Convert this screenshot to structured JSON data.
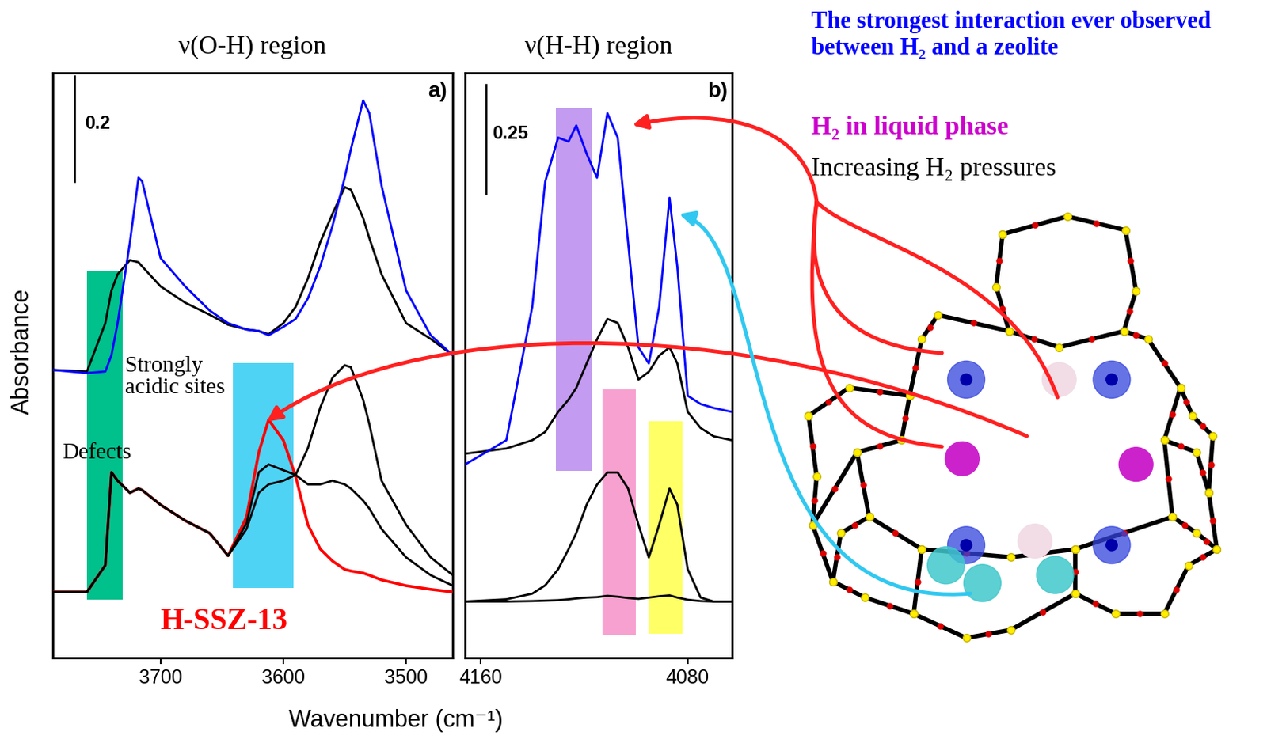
{
  "chart_data": [
    {
      "type": "line",
      "title": "ν(O-H) region",
      "panel_label": "a)",
      "xlim": [
        3788,
        3462
      ],
      "xticks": [
        3700,
        3600,
        3500
      ],
      "ylim": [
        0,
        1.115
      ],
      "tick_labels": "x",
      "x": [
        3788,
        3760,
        3745,
        3740,
        3735,
        3725,
        3718,
        3715,
        3700,
        3680,
        3660,
        3645,
        3630,
        3620,
        3612,
        3600,
        3590,
        3580,
        3570,
        3560,
        3550,
        3545,
        3535,
        3530,
        3520,
        3500,
        3480,
        3462
      ],
      "series": [
        {
          "color": "#ff0000",
          "line_style": "solid",
          "values": [
            0.126,
            0.126,
            0.177,
            0.354,
            0.338,
            0.315,
            0.323,
            0.32,
            0.292,
            0.262,
            0.238,
            0.195,
            0.269,
            0.392,
            0.454,
            0.415,
            0.346,
            0.254,
            0.208,
            0.185,
            0.169,
            0.166,
            0.162,
            0.158,
            0.149,
            0.138,
            0.131,
            0.126
          ]
        },
        {
          "color": "#000000",
          "line_style": "solid",
          "values": [
            0.126,
            0.126,
            0.177,
            0.354,
            0.338,
            0.315,
            0.323,
            0.32,
            0.292,
            0.262,
            0.238,
            0.195,
            0.257,
            0.354,
            0.369,
            0.358,
            0.349,
            0.331,
            0.331,
            0.338,
            0.331,
            0.323,
            0.3,
            0.285,
            0.246,
            0.192,
            0.158,
            0.138
          ]
        },
        {
          "color": "#000000",
          "line_style": "solid",
          "values": [
            0.126,
            0.126,
            0.177,
            0.354,
            0.338,
            0.315,
            0.323,
            0.32,
            0.292,
            0.262,
            0.238,
            0.195,
            0.246,
            0.315,
            0.331,
            0.338,
            0.349,
            0.4,
            0.477,
            0.534,
            0.558,
            0.554,
            0.492,
            0.446,
            0.338,
            0.254,
            0.192,
            0.158
          ]
        },
        {
          "color": "#000000",
          "line_style": "solid",
          "values": [
            0.549,
            0.546,
            0.638,
            0.7,
            0.731,
            0.758,
            0.754,
            0.746,
            0.708,
            0.677,
            0.654,
            0.635,
            0.626,
            0.623,
            0.617,
            0.638,
            0.669,
            0.723,
            0.792,
            0.846,
            0.897,
            0.892,
            0.838,
            0.8,
            0.731,
            0.638,
            0.608,
            0.577
          ]
        },
        {
          "color": "#0000ff",
          "line_style": "solid",
          "values": [
            0.549,
            0.543,
            0.546,
            0.577,
            0.638,
            0.792,
            0.915,
            0.908,
            0.762,
            0.708,
            0.662,
            0.638,
            0.626,
            0.623,
            0.615,
            0.631,
            0.646,
            0.685,
            0.746,
            0.823,
            0.915,
            0.969,
            1.062,
            1.038,
            0.9,
            0.7,
            0.615,
            0.577
          ]
        }
      ],
      "highlights": [
        {
          "x": [
            3760,
            3731
          ],
          "y": [
            0.111,
            0.738
          ],
          "color": "#00c08b"
        },
        {
          "x": [
            3641,
            3592
          ],
          "y": [
            0.134,
            0.562
          ],
          "color": "#4fd3f5"
        }
      ],
      "scale_bar": {
        "value": 0.2,
        "x": 3770,
        "y": 0.908
      },
      "annotations": [
        "Strongly acidic sites",
        "Defects",
        "H-SSZ-13"
      ]
    },
    {
      "type": "line",
      "title": "ν(H-H) region",
      "panel_label": "b)",
      "xlim": [
        4166,
        4063
      ],
      "xticks": [
        4160,
        4080
      ],
      "ylim": [
        0,
        1.343
      ],
      "tick_labels": "x",
      "x": [
        4166,
        4150,
        4140,
        4135,
        4130,
        4126,
        4123,
        4119,
        4115,
        4111,
        4107,
        4103,
        4099,
        4095,
        4091,
        4087,
        4084,
        4080,
        4075,
        4070,
        4063
      ],
      "series": [
        {
          "color": "#000000",
          "line_style": "solid",
          "values": [
            0.13,
            0.13,
            0.131,
            0.132,
            0.133,
            0.135,
            0.137,
            0.139,
            0.14,
            0.143,
            0.141,
            0.138,
            0.136,
            0.139,
            0.142,
            0.144,
            0.139,
            0.134,
            0.131,
            0.13,
            0.13
          ]
        },
        {
          "color": "#000000",
          "line_style": "solid",
          "values": [
            0.13,
            0.135,
            0.148,
            0.167,
            0.204,
            0.25,
            0.287,
            0.352,
            0.398,
            0.426,
            0.426,
            0.389,
            0.306,
            0.231,
            0.306,
            0.389,
            0.352,
            0.204,
            0.139,
            0.13,
            0.13
          ]
        },
        {
          "color": "#000000",
          "line_style": "solid",
          "values": [
            0.469,
            0.481,
            0.5,
            0.519,
            0.565,
            0.593,
            0.62,
            0.676,
            0.731,
            0.778,
            0.769,
            0.713,
            0.639,
            0.657,
            0.694,
            0.713,
            0.676,
            0.565,
            0.528,
            0.509,
            0.5
          ]
        },
        {
          "color": "#0000ff",
          "line_style": "solid",
          "values": [
            0.444,
            0.5,
            0.806,
            1.093,
            1.194,
            1.185,
            1.222,
            1.157,
            1.102,
            1.25,
            1.194,
            0.954,
            0.713,
            0.676,
            0.806,
            1.056,
            0.898,
            0.602,
            0.583,
            0.574,
            0.565
          ]
        }
      ],
      "highlights": [
        {
          "x": [
            4131,
            4117
          ],
          "y": [
            0.43,
            1.263
          ],
          "color": "#c39bf0"
        },
        {
          "x": [
            4113,
            4100
          ],
          "y": [
            0.052,
            0.617
          ],
          "color": "#f7a1d0"
        },
        {
          "x": [
            4095,
            4082
          ],
          "y": [
            0.056,
            0.543
          ],
          "color": "#ffff66"
        }
      ],
      "scale_bar": {
        "value": 0.25,
        "x": 4158,
        "y": 1.065
      },
      "annotations": []
    }
  ],
  "figure": {
    "ylabel": "Absorbance",
    "xlabel": "Wavenumber (cm⁻¹)",
    "texts": [
      {
        "text": "The strongest interaction ever observed between H₂ and a zeolite",
        "color": "#0000ff"
      },
      {
        "text": "H₂ in liquid phase",
        "color": "#cc00cc"
      },
      {
        "text": "Increasing H₂ pressures",
        "color": "#000000"
      }
    ]
  }
}
